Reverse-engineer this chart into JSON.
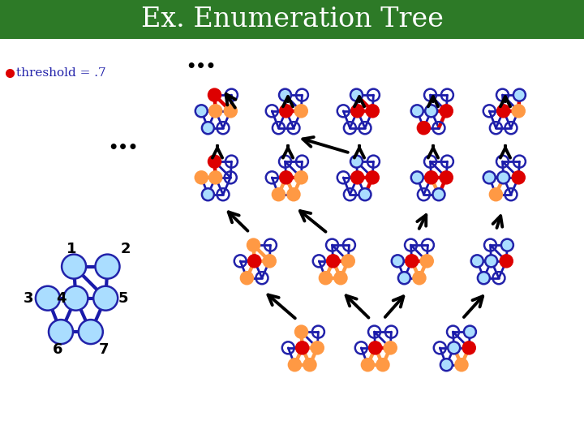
{
  "title": "Ex. Enumeration Tree",
  "title_bg": "#2d7a27",
  "title_color": "white",
  "threshold_text": "threshold = .7",
  "bg_color": "white",
  "node_fill_blue": "#aaddff",
  "node_fill_red": "#dd0000",
  "node_fill_orange": "#ff9944",
  "node_edge_dark": "#2222aa",
  "node_edge_red": "#dd0000",
  "node_edge_orange": "#ff9944",
  "edge_dark": "#1a1aaa",
  "edge_red": "#dd0000",
  "edge_orange": "#ff9944",
  "arrow_color": "black",
  "dots_color": "black",
  "title_fontsize": 24,
  "graph_node_r": 7.5,
  "graph_size": 58,
  "base_node_r": 15,
  "base_size": 115
}
